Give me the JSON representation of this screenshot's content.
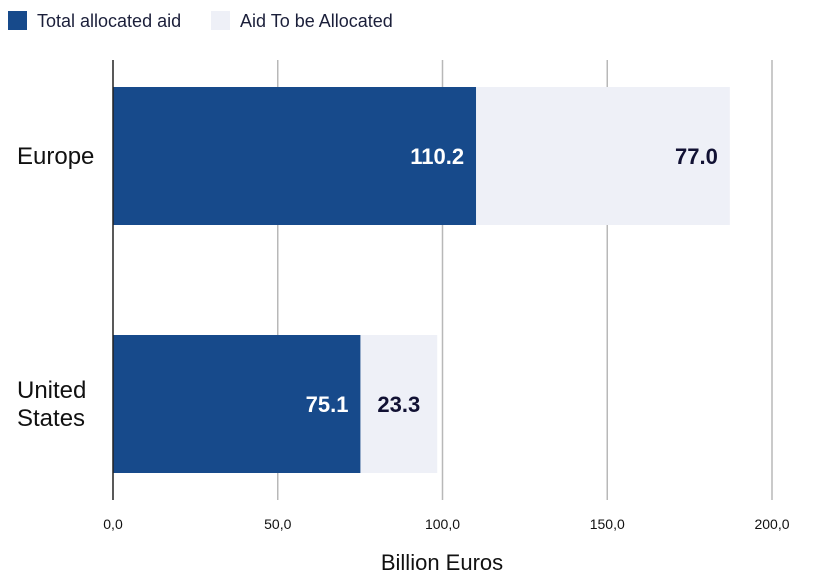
{
  "chart_data": {
    "type": "bar",
    "orientation": "horizontal",
    "stacked": true,
    "title": "",
    "xlabel": "Billion Euros",
    "ylabel": "",
    "categories": [
      "Europe",
      "United States"
    ],
    "category_lines": [
      [
        "Europe"
      ],
      [
        "United",
        "States"
      ]
    ],
    "series": [
      {
        "name": "Total allocated aid",
        "values": [
          110.2,
          75.1
        ],
        "labels": [
          "110.2",
          "75.1"
        ],
        "color": "#174a8b",
        "label_color": "#ffffff"
      },
      {
        "name": "Aid To be Allocated",
        "values": [
          77.0,
          23.3
        ],
        "labels": [
          "77.0",
          "23.3"
        ],
        "color": "#eef0f7",
        "label_color": "#111133"
      }
    ],
    "xlim": [
      0,
      200
    ],
    "xticks": [
      0,
      50,
      100,
      150,
      200
    ],
    "xtick_labels": [
      "0,0",
      "50,0",
      "100,0",
      "150,0",
      "200,0"
    ],
    "grid": true,
    "legend_position": "top-left",
    "gridline_color": "#b8b8b8",
    "axis_color": "#222222"
  }
}
